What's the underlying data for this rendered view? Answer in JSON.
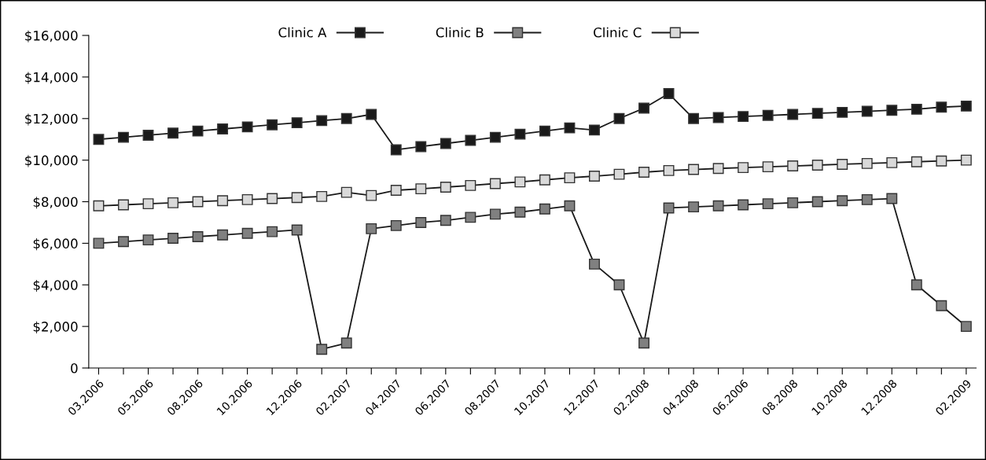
{
  "chart_data": {
    "type": "line",
    "categories": [
      "03.2006",
      null,
      "05.2006",
      null,
      "08.2006",
      null,
      "10.2006",
      null,
      "12.2006",
      null,
      "02.2007",
      null,
      "04.2007",
      null,
      "06.2007",
      null,
      "08.2007",
      null,
      "10.2007",
      null,
      "12.2007",
      null,
      "02.2008",
      null,
      "04.2008",
      null,
      "06.2006",
      null,
      "08.2008",
      null,
      "10.2008",
      null,
      "12.2008",
      null,
      null,
      "02.2009"
    ],
    "series": [
      {
        "name": "Clinic A",
        "color": "#1a1a1a",
        "values": [
          11000,
          11100,
          11200,
          11300,
          11400,
          11500,
          11600,
          11700,
          11800,
          11900,
          12000,
          12200,
          10500,
          10650,
          10800,
          10950,
          11100,
          11250,
          11400,
          11550,
          11450,
          12000,
          12500,
          13200,
          12000,
          12050,
          12100,
          12150,
          12200,
          12250,
          12300,
          12350,
          12400,
          12450,
          12550,
          12600
        ]
      },
      {
        "name": "Clinic B",
        "color": "#808080",
        "values": [
          6000,
          6080,
          6160,
          6240,
          6320,
          6400,
          6480,
          6560,
          6640,
          900,
          1200,
          6700,
          6850,
          7000,
          7100,
          7250,
          7400,
          7500,
          7650,
          7800,
          5000,
          4000,
          1200,
          7700,
          7750,
          7800,
          7850,
          7900,
          7950,
          8000,
          8050,
          8100,
          8150,
          4000,
          3000,
          2000
        ]
      },
      {
        "name": "Clinic C",
        "color": "#d9d9d9",
        "values": [
          7800,
          7850,
          7900,
          7950,
          8000,
          8050,
          8100,
          8150,
          8200,
          8250,
          8450,
          8300,
          8550,
          8620,
          8700,
          8780,
          8870,
          8950,
          9050,
          9150,
          9230,
          9320,
          9420,
          9500,
          9550,
          9600,
          9640,
          9680,
          9720,
          9760,
          9800,
          9840,
          9880,
          9920,
          9960,
          10000
        ]
      }
    ],
    "ylim": [
      0,
      16000
    ],
    "yticks": [
      {
        "value": 0,
        "label": "0"
      },
      {
        "value": 2000,
        "label": "$2,000"
      },
      {
        "value": 4000,
        "label": "$4,000"
      },
      {
        "value": 6000,
        "label": "$6,000"
      },
      {
        "value": 8000,
        "label": "$8,000"
      },
      {
        "value": 10000,
        "label": "$10,000"
      },
      {
        "value": 12000,
        "label": "$12,000"
      },
      {
        "value": 14000,
        "label": "$14,000"
      },
      {
        "value": 16000,
        "label": "$16,000"
      }
    ],
    "grid": false,
    "legend": "top",
    "marker": "square",
    "line_style": "solid"
  }
}
